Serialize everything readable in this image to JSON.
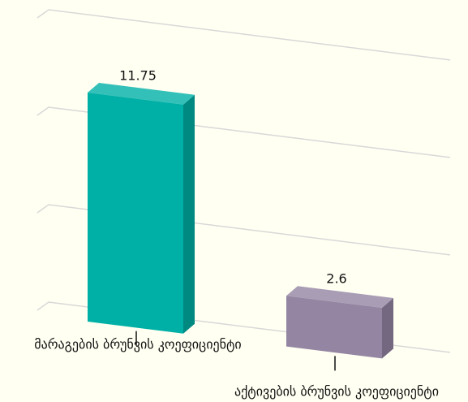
{
  "chart_data": {
    "type": "bar3d",
    "categories": [
      "მარაგების ბრუნვის კოეფიციენტი",
      "აქტივების ბრუნვის კოეფიციენტი"
    ],
    "values": [
      11.75,
      2.6
    ],
    "colors": [
      "#00b0a6",
      "#9485a3"
    ],
    "ylim": [
      0,
      15
    ],
    "yticks": [
      0,
      5,
      10,
      15
    ],
    "grid": true
  }
}
